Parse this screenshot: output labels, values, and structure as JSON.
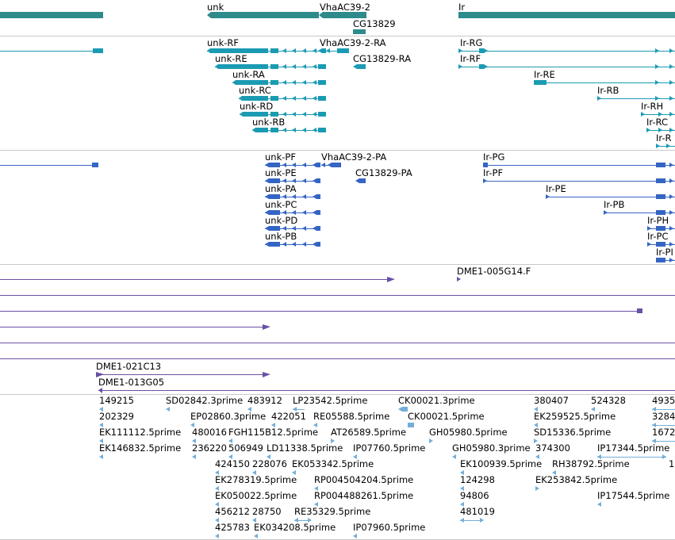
{
  "colors": {
    "gene": "#2e8b8b",
    "transcript": "#1b9bb3",
    "protein": "#3465c4",
    "probe": "#6a51a3",
    "est": "#74aed8",
    "separator": "#c8c8c8"
  },
  "genes": {
    "unk": "unk",
    "vha": "VhaAC39-2",
    "cg": "CG13829",
    "ir": "Ir"
  },
  "transcripts": {
    "unk_rf": "unk-RF",
    "unk_re": "unk-RE",
    "unk_ra": "unk-RA",
    "unk_rc": "unk-RC",
    "unk_rd": "unk-RD",
    "unk_rb": "unk-RB",
    "vha_ra": "VhaAC39-2-RA",
    "cg_ra": "CG13829-RA",
    "ir_rg": "Ir-RG",
    "ir_rf": "Ir-RF",
    "ir_re": "Ir-RE",
    "ir_rb": "Ir-RB",
    "ir_rh": "Ir-RH",
    "ir_rc": "Ir-RC",
    "ir_r_clip": "Ir-R"
  },
  "proteins": {
    "unk_pf": "unk-PF",
    "unk_pe": "unk-PE",
    "unk_pa": "unk-PA",
    "unk_pc": "unk-PC",
    "unk_pd": "unk-PD",
    "unk_pb": "unk-PB",
    "vha_pa": "VhaAC39-2-PA",
    "cg_pa": "CG13829-PA",
    "ir_pg": "Ir-PG",
    "ir_pf": "Ir-PF",
    "ir_pe": "Ir-PE",
    "ir_pb": "Ir-PB",
    "ir_ph": "Ir-PH",
    "ir_pc": "Ir-PC",
    "ir_p_clip": "Ir-PI"
  },
  "probes": {
    "p1": "DME1-005G14.F",
    "p2": "DME1-021C13",
    "p3": "DME1-013G05"
  },
  "ests": {
    "e1": "149215",
    "e2": "SD02842.3prime",
    "e3": "483912",
    "e4": "LP23542.5prime",
    "e5": "CK00021.3prime",
    "e6": "380407",
    "e7": "524328",
    "e8": "4935",
    "e9": "202329",
    "e10": "EP02860.3prime",
    "e11": "422051",
    "e12": "RE05588.5prime",
    "e13": "CK00021.5prime",
    "e14": "EK259525.5prime",
    "e15": "3284",
    "e16": "EK111112.5prime",
    "e17": "480016",
    "e18": "FGH115B12.5prime",
    "e19": "AT26589.5prime",
    "e20": "GH05980.5prime",
    "e21": "SD15336.5prime",
    "e22": "1672",
    "e23": "EK146832.5prime",
    "e24": "236220",
    "e25": "506949",
    "e26": "LD11338.5prime",
    "e27": "IP07760.5prime",
    "e28": "GH05980.3prime",
    "e29": "374300",
    "e30": "IP17344.5prime",
    "e31": "1",
    "e32": "424150",
    "e33": "228076",
    "e34": "EK053342.5prime",
    "e35": "EK100939.5prime",
    "e36": "RH38792.5prime",
    "e37": "EK278319.5prime",
    "e38": "RP004504204.5prime",
    "e39": "124298",
    "e40": "EK253842.5prime",
    "e41": "EK050022.5prime",
    "e42": "RP004488261.5prime",
    "e43": "94806",
    "e44": "IP17544.5prime",
    "e45": "456212",
    "e46": "28750",
    "e47": "RE35329.5prime",
    "e48": "481019",
    "e49": "425783",
    "e50": "EK034208.5prime",
    "e51": "IP07960.5prime"
  }
}
